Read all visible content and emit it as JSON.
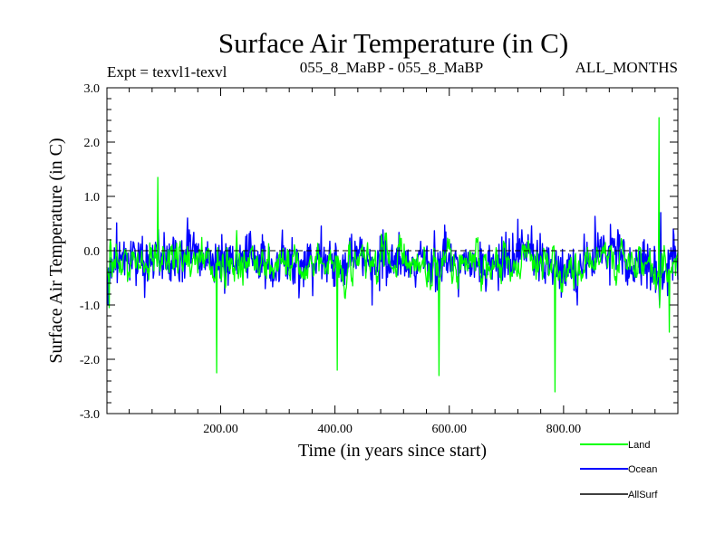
{
  "chart_data": {
    "type": "line",
    "title": "Surface Air Temperature (in C)",
    "subtitle_left": "Expt = texvl1-texvl",
    "subtitle_center": "055_8_MaBP - 055_8_MaBP",
    "subtitle_right": "ALL_MONTHS",
    "xlabel": "Time (in years since start)",
    "ylabel": "Surface Air Temperature (in C)",
    "xlim": [
      1,
      1000
    ],
    "ylim": [
      -3.0,
      3.0
    ],
    "x_ticks": [
      200,
      400,
      600,
      800
    ],
    "x_tick_labels": [
      "200.00",
      "400.00",
      "600.00",
      "800.00"
    ],
    "y_ticks": [
      -3,
      -2,
      -1,
      0,
      1,
      2,
      3
    ],
    "y_tick_labels": [
      "-3.0",
      "-2.0",
      "-1.0",
      "0.0",
      "1.0",
      "2.0",
      "3.0"
    ],
    "zero_reference_line": 0.0,
    "n_years": 1000,
    "series": [
      {
        "name": "Land",
        "color": "#00ff00",
        "approx_min": -2.6,
        "approx_max": 2.45,
        "approx_std": 0.75,
        "key_points": [
          [
            5,
            -1.05
          ],
          [
            90,
            1.35
          ],
          [
            193,
            -2.25
          ],
          [
            404,
            -2.2
          ],
          [
            582,
            -2.3
          ],
          [
            785,
            -2.62
          ],
          [
            967,
            2.45
          ],
          [
            985,
            -1.5
          ]
        ]
      },
      {
        "name": "Ocean",
        "color": "#0000ff",
        "approx_min": -1.0,
        "approx_max": 0.7,
        "approx_std": 0.22,
        "key_points": [
          [
            3,
            -1.0
          ],
          [
            465,
            -1.0
          ],
          [
            970,
            0.7
          ]
        ]
      },
      {
        "name": "AllSurf",
        "color": "#000000",
        "note": "legend entry only; hidden under the other series"
      }
    ]
  }
}
